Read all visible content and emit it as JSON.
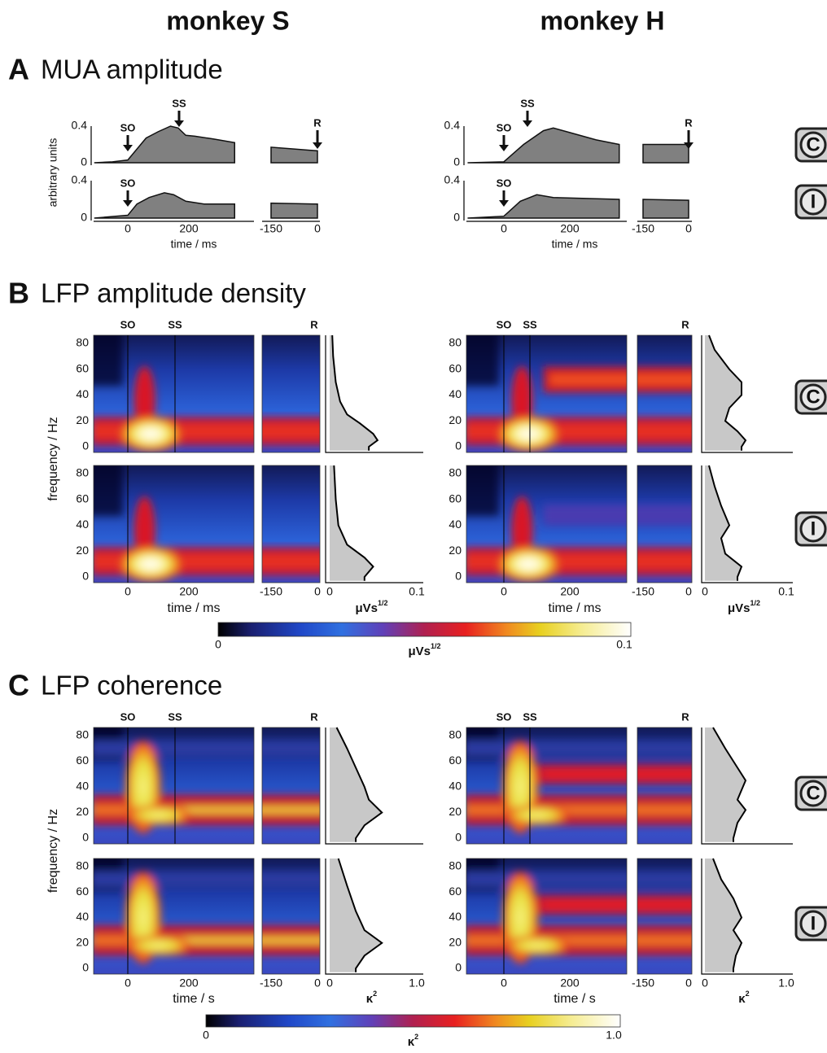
{
  "columns": [
    "monkey S",
    "monkey H"
  ],
  "sections": [
    {
      "letter": "A",
      "title": "MUA amplitude"
    },
    {
      "letter": "B",
      "title": "LFP amplitude density"
    },
    {
      "letter": "C",
      "title": "LFP coherence"
    }
  ],
  "conditions": [
    "C",
    "I"
  ],
  "events": [
    "SO",
    "SS",
    "R"
  ],
  "mua": {
    "ylabel": "arbitrary units",
    "yticks": [
      "0.4",
      "0"
    ],
    "xticks": [
      "0",
      "200",
      "-150",
      "0"
    ],
    "xlabel": "time / ms"
  },
  "amplitude": {
    "ylabel": "frequency / Hz",
    "yticks": [
      "80",
      "60",
      "40",
      "20",
      "0"
    ],
    "xticks": [
      "0",
      "200",
      "-150",
      "0"
    ],
    "xlabel": "time / ms",
    "spectrum_xticks": [
      "0",
      "0.1"
    ],
    "unit": {
      "base": "μVs",
      "sup": "1/2"
    },
    "colorbar": [
      "0",
      "0.1"
    ]
  },
  "coherence": {
    "ylabel": "frequency / Hz",
    "yticks": [
      "80",
      "60",
      "40",
      "20",
      "0"
    ],
    "xticks": [
      "0",
      "200",
      "-150",
      "0"
    ],
    "xlabel": "time / s",
    "spectrum_xticks": [
      "0",
      "1.0"
    ],
    "unit": {
      "base": "κ",
      "sup": "2"
    },
    "colorbar": [
      "0",
      "1.0"
    ]
  }
}
